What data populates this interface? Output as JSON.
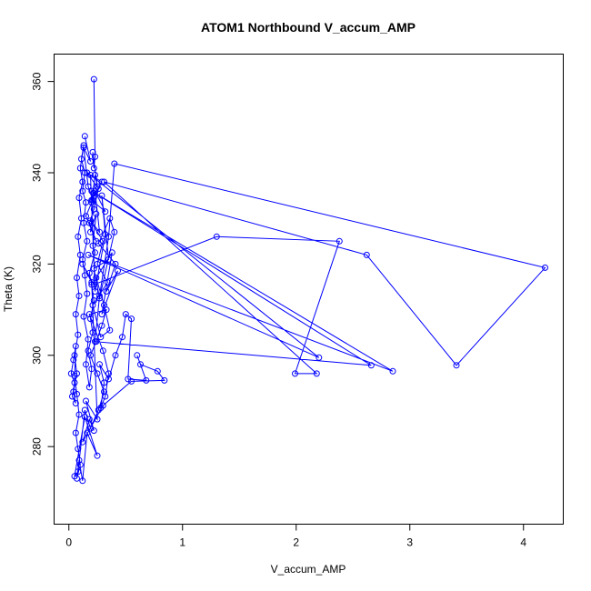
{
  "chart_data": {
    "type": "line",
    "title": "ATOM1 Northbound V_accum_AMP",
    "xlabel": "V_accum_AMP",
    "ylabel": "Theta (K)",
    "xlim": [
      -0.13,
      4.35
    ],
    "ylim": [
      263,
      366
    ],
    "xticks": [
      0,
      1,
      2,
      3,
      4
    ],
    "yticks": [
      280,
      300,
      320,
      340,
      360
    ],
    "xtick_labels": [
      "0",
      "1",
      "2",
      "3",
      "4"
    ],
    "ytick_labels": [
      "280",
      "300",
      "320",
      "340",
      "360"
    ],
    "grid": false,
    "legend": "none",
    "color": "#0000ff",
    "series": [
      {
        "x": [
          0.22,
          0.23,
          0.22,
          0.21,
          0.25,
          0.23,
          0.2,
          0.22,
          0.19,
          0.24,
          0.21,
          0.23,
          0.18,
          0.2,
          0.22,
          0.19,
          0.21,
          0.17,
          0.2,
          0.18,
          0.15,
          0.17,
          0.13,
          0.16,
          0.14,
          0.12,
          0.16,
          0.13,
          0.15,
          0.12,
          0.14,
          0.11,
          0.13,
          0.1,
          0.12,
          0.09,
          0.11,
          0.08,
          0.1,
          0.07,
          0.09,
          0.06,
          0.08,
          0.05,
          0.07,
          0.04,
          0.06,
          0.03,
          0.05,
          0.02,
          0.04,
          0.06,
          0.05,
          0.07,
          0.09,
          0.06,
          0.08,
          0.1,
          0.07,
          0.09,
          0.12,
          0.16,
          0.25,
          0.14,
          0.05,
          0.08,
          0.14,
          0.19,
          0.26,
          0.31,
          0.25,
          0.19,
          0.24,
          0.29,
          0.33,
          0.18,
          0.3,
          0.35,
          0.32,
          0.28,
          0.31,
          0.27,
          0.35,
          0.41,
          0.47,
          0.5,
          0.55,
          0.52,
          0.68,
          0.6,
          0.63,
          0.78,
          0.84,
          0.55,
          0.3,
          0.12,
          0.18,
          0.22,
          0.15,
          0.25,
          0.2,
          0.12,
          0.22,
          1.3,
          2.38,
          1.99,
          2.18,
          0.31,
          2.62,
          3.41,
          4.19,
          0.4,
          0.35,
          0.27,
          0.23,
          2.66,
          0.2,
          2.85,
          0.17,
          2.2,
          0.19,
          0.23,
          0.32,
          0.29,
          0.35,
          0.22,
          0.27,
          0.4,
          0.36,
          0.26,
          0.41,
          0.33,
          0.43,
          0.29,
          0.38,
          0.24,
          0.31,
          0.36,
          0.28,
          0.21,
          0.34,
          0.25,
          0.3,
          0.19,
          0.27,
          0.23,
          0.32,
          0.2,
          0.29,
          0.16,
          0.26,
          0.22,
          0.18,
          0.24,
          0.15,
          0.21,
          0.17,
          0.13,
          0.19,
          0.14
        ],
        "y": [
          360.5,
          343.5,
          341.0,
          344.5,
          337.0,
          339.5,
          333.5,
          335.5,
          327.0,
          331.0,
          324.0,
          322.5,
          318.0,
          315.5,
          312.0,
          308.0,
          305.0,
          301.0,
          297.0,
          293.0,
          298.0,
          303.5,
          308.5,
          313.5,
          317.5,
          321.0,
          325.0,
          329.0,
          333.5,
          336.0,
          340.0,
          343.0,
          346.0,
          341.0,
          338.0,
          334.5,
          330.0,
          326.0,
          322.0,
          317.0,
          313.0,
          309.0,
          304.5,
          300.0,
          296.0,
          292.0,
          289.5,
          291.0,
          294.0,
          296.0,
          299.0,
          302.0,
          295.5,
          291.5,
          287.0,
          283.0,
          279.5,
          276.0,
          273.0,
          277.0,
          272.5,
          283.0,
          278.0,
          286.5,
          273.5,
          274.5,
          288.0,
          284.0,
          288.0,
          292.0,
          296.0,
          300.0,
          303.0,
          306.5,
          310.0,
          309.0,
          301.0,
          296.0,
          291.0,
          288.5,
          294.0,
          298.0,
          294.8,
          300.0,
          304.0,
          309.0,
          308.0,
          294.8,
          294.5,
          300.0,
          298.0,
          296.5,
          294.5,
          294.3,
          289.0,
          281.0,
          286.0,
          283.5,
          290.0,
          286.0,
          316.0,
          320.0,
          315.5,
          326.0,
          325.0,
          296.0,
          296.0,
          338.0,
          322.0,
          297.8,
          319.2,
          342.0,
          326.0,
          313.0,
          303.0,
          297.8,
          336.0,
          296.5,
          322.0,
          299.5,
          339.5,
          314.0,
          326.5,
          335.0,
          321.0,
          319.0,
          312.5,
          327.0,
          330.0,
          324.5,
          320.0,
          314.0,
          318.5,
          309.0,
          322.5,
          317.0,
          311.0,
          305.5,
          304.0,
          311.0,
          316.0,
          320.0,
          325.0,
          329.5,
          327.0,
          336.0,
          331.5,
          334.0,
          338.0,
          340.0,
          336.5,
          332.0,
          329.0,
          325.0,
          330.5,
          334.0,
          337.0,
          345.5,
          342.5,
          348.0
        ]
      }
    ]
  }
}
